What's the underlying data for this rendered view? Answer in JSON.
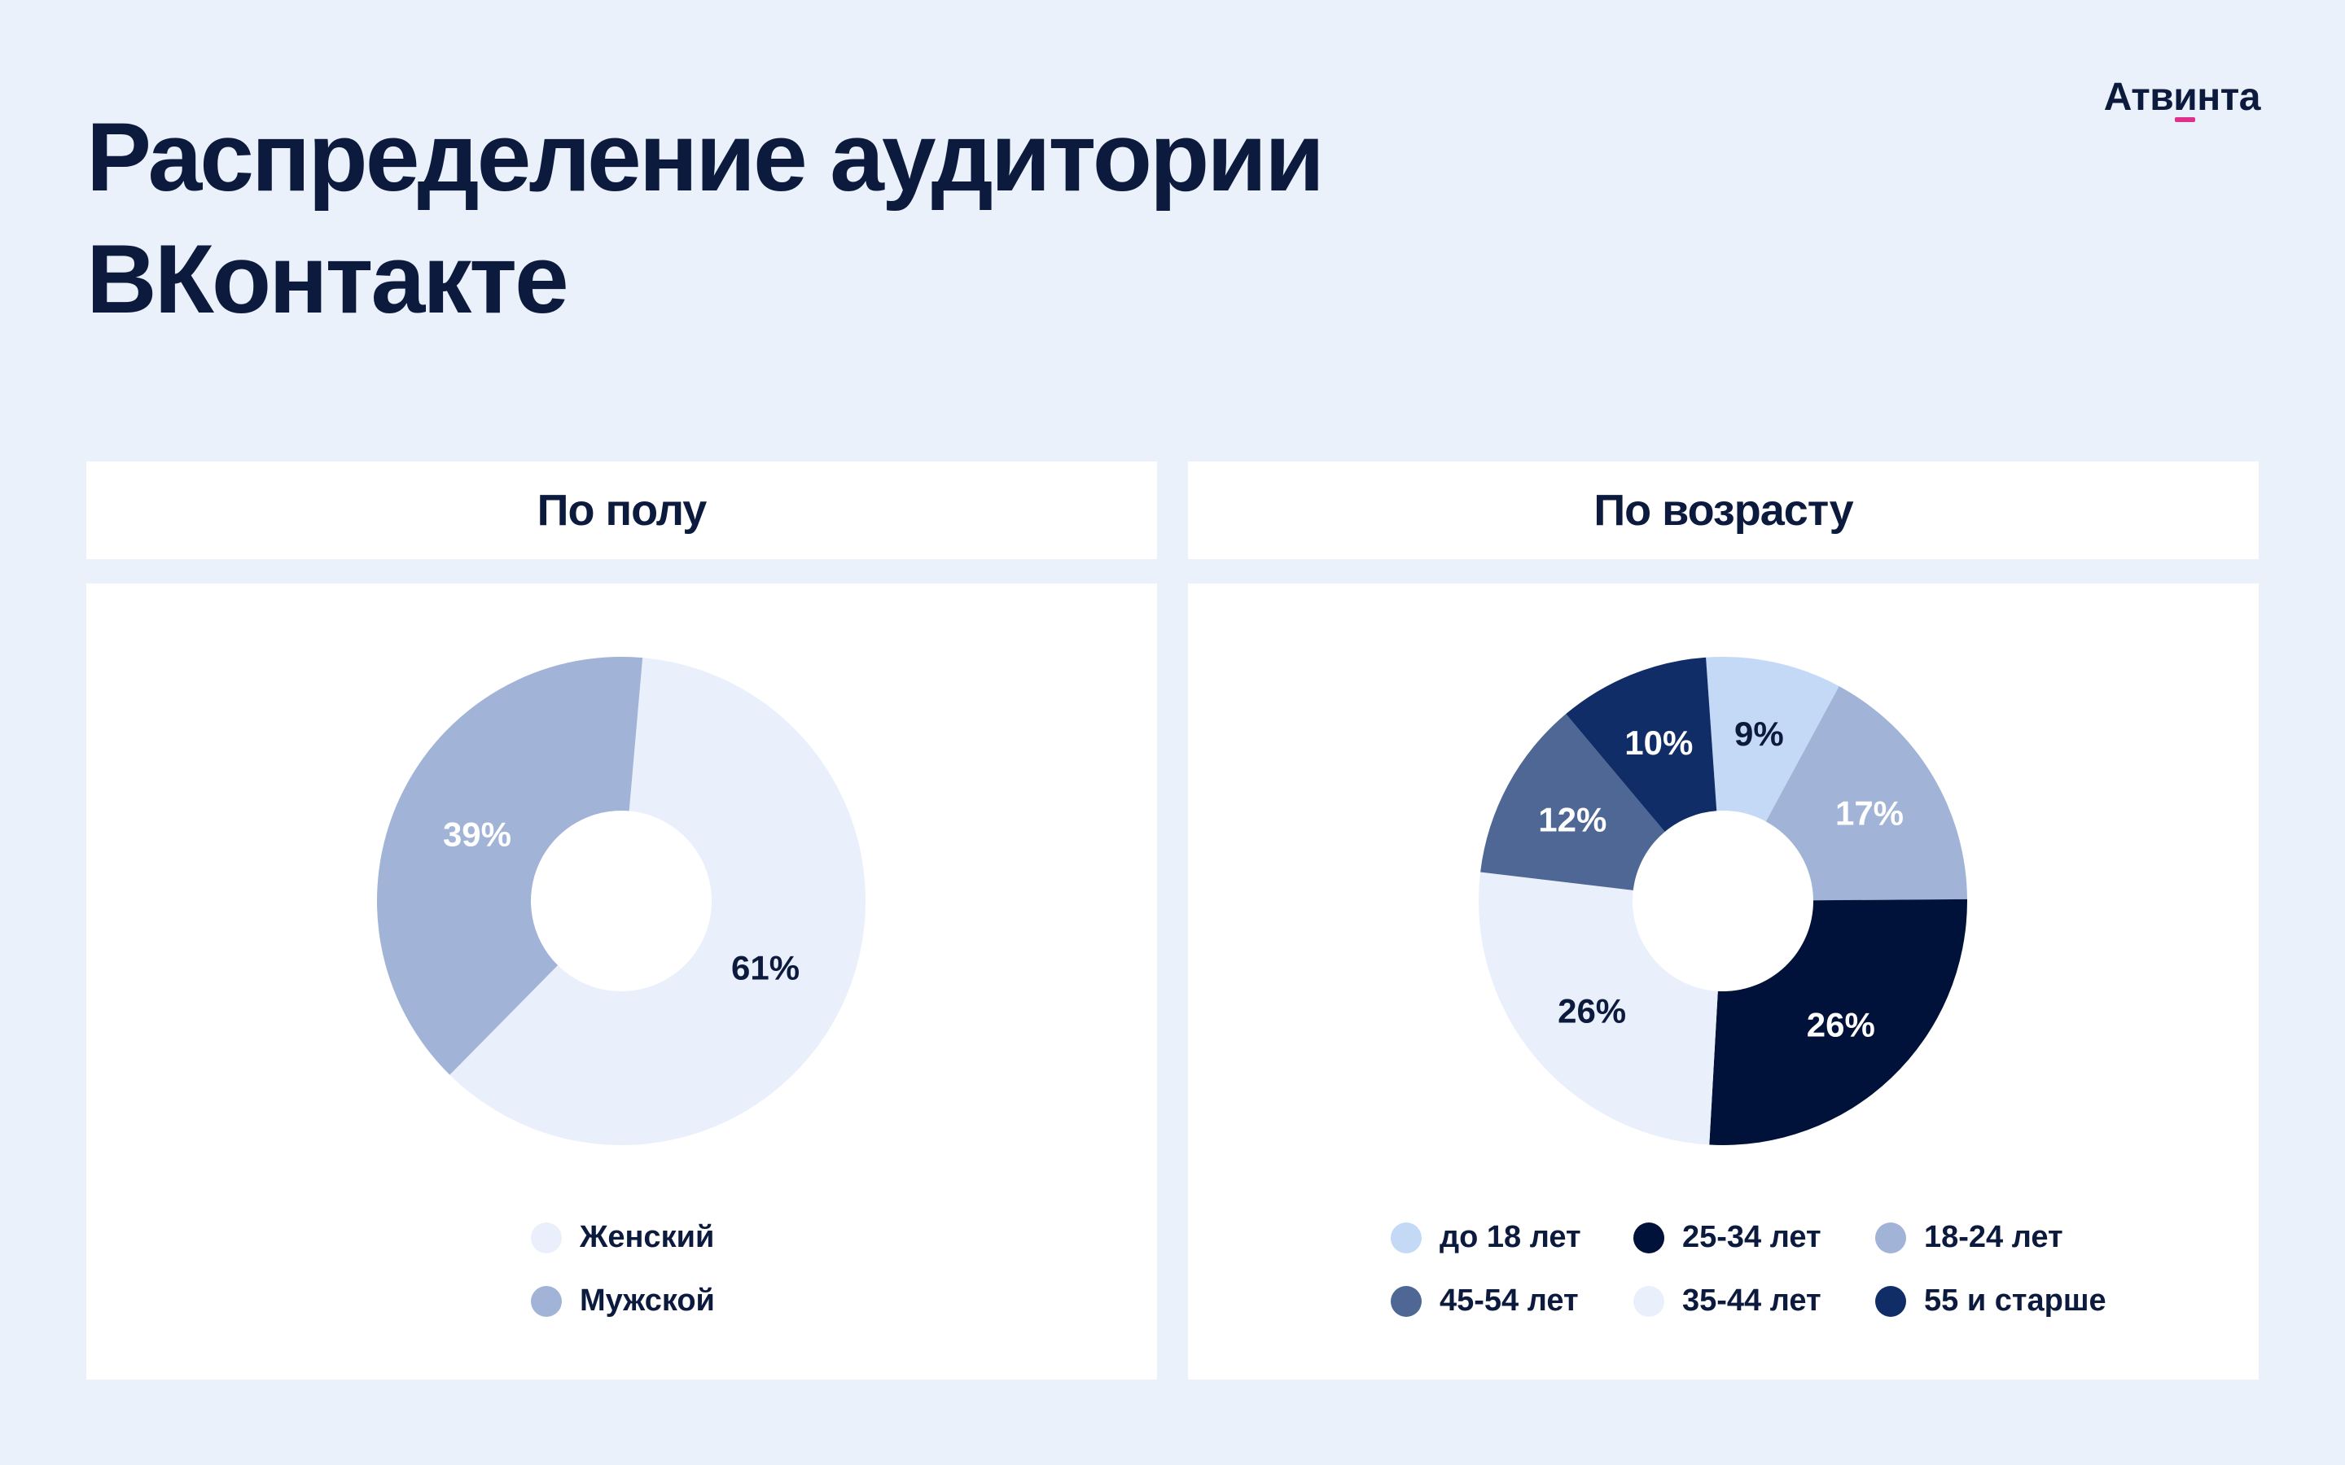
{
  "page": {
    "title_line1": "Распределение  аудитории",
    "title_line2": "ВКонтакте",
    "logo_part1": "Атв",
    "logo_accent": "и",
    "logo_part2": "нта"
  },
  "chart_data": [
    {
      "type": "pie",
      "title": "По полу",
      "categories": [
        "Женский",
        "Мужской"
      ],
      "values": [
        61,
        39
      ],
      "labels": [
        "61%",
        "39%"
      ],
      "colors": [
        "#e9f0fb",
        "#a1b3d6"
      ],
      "label_colors": [
        "#0c1a3d",
        "#ffffff"
      ],
      "start_angle_deg": 5,
      "direction": "clockwise",
      "legend": "bottom"
    },
    {
      "type": "pie",
      "title": "По возрасту",
      "categories": [
        "до 18 лет",
        "18-24 лет",
        "25-34 лет",
        "35-44 лет",
        "45-54 лет",
        "55 и старше"
      ],
      "values": [
        9,
        17,
        26,
        26,
        12,
        10
      ],
      "labels": [
        "9%",
        "17%",
        "26%",
        "26%",
        "12%",
        "10%"
      ],
      "colors": [
        "#c4d9f6",
        "#a1b3d6",
        "#01123a",
        "#e9f0fb",
        "#4e6795",
        "#102d68"
      ],
      "label_colors": [
        "#0c1a3d",
        "#ffffff",
        "#ffffff",
        "#0c1a3d",
        "#ffffff",
        "#ffffff"
      ],
      "start_angle_deg": -4,
      "direction": "clockwise",
      "legend": "bottom",
      "legend_order": [
        "до 18 лет",
        "25-34 лет",
        "18-24 лет",
        "45-54 лет",
        "35-44 лет",
        "55 и старше"
      ]
    }
  ]
}
